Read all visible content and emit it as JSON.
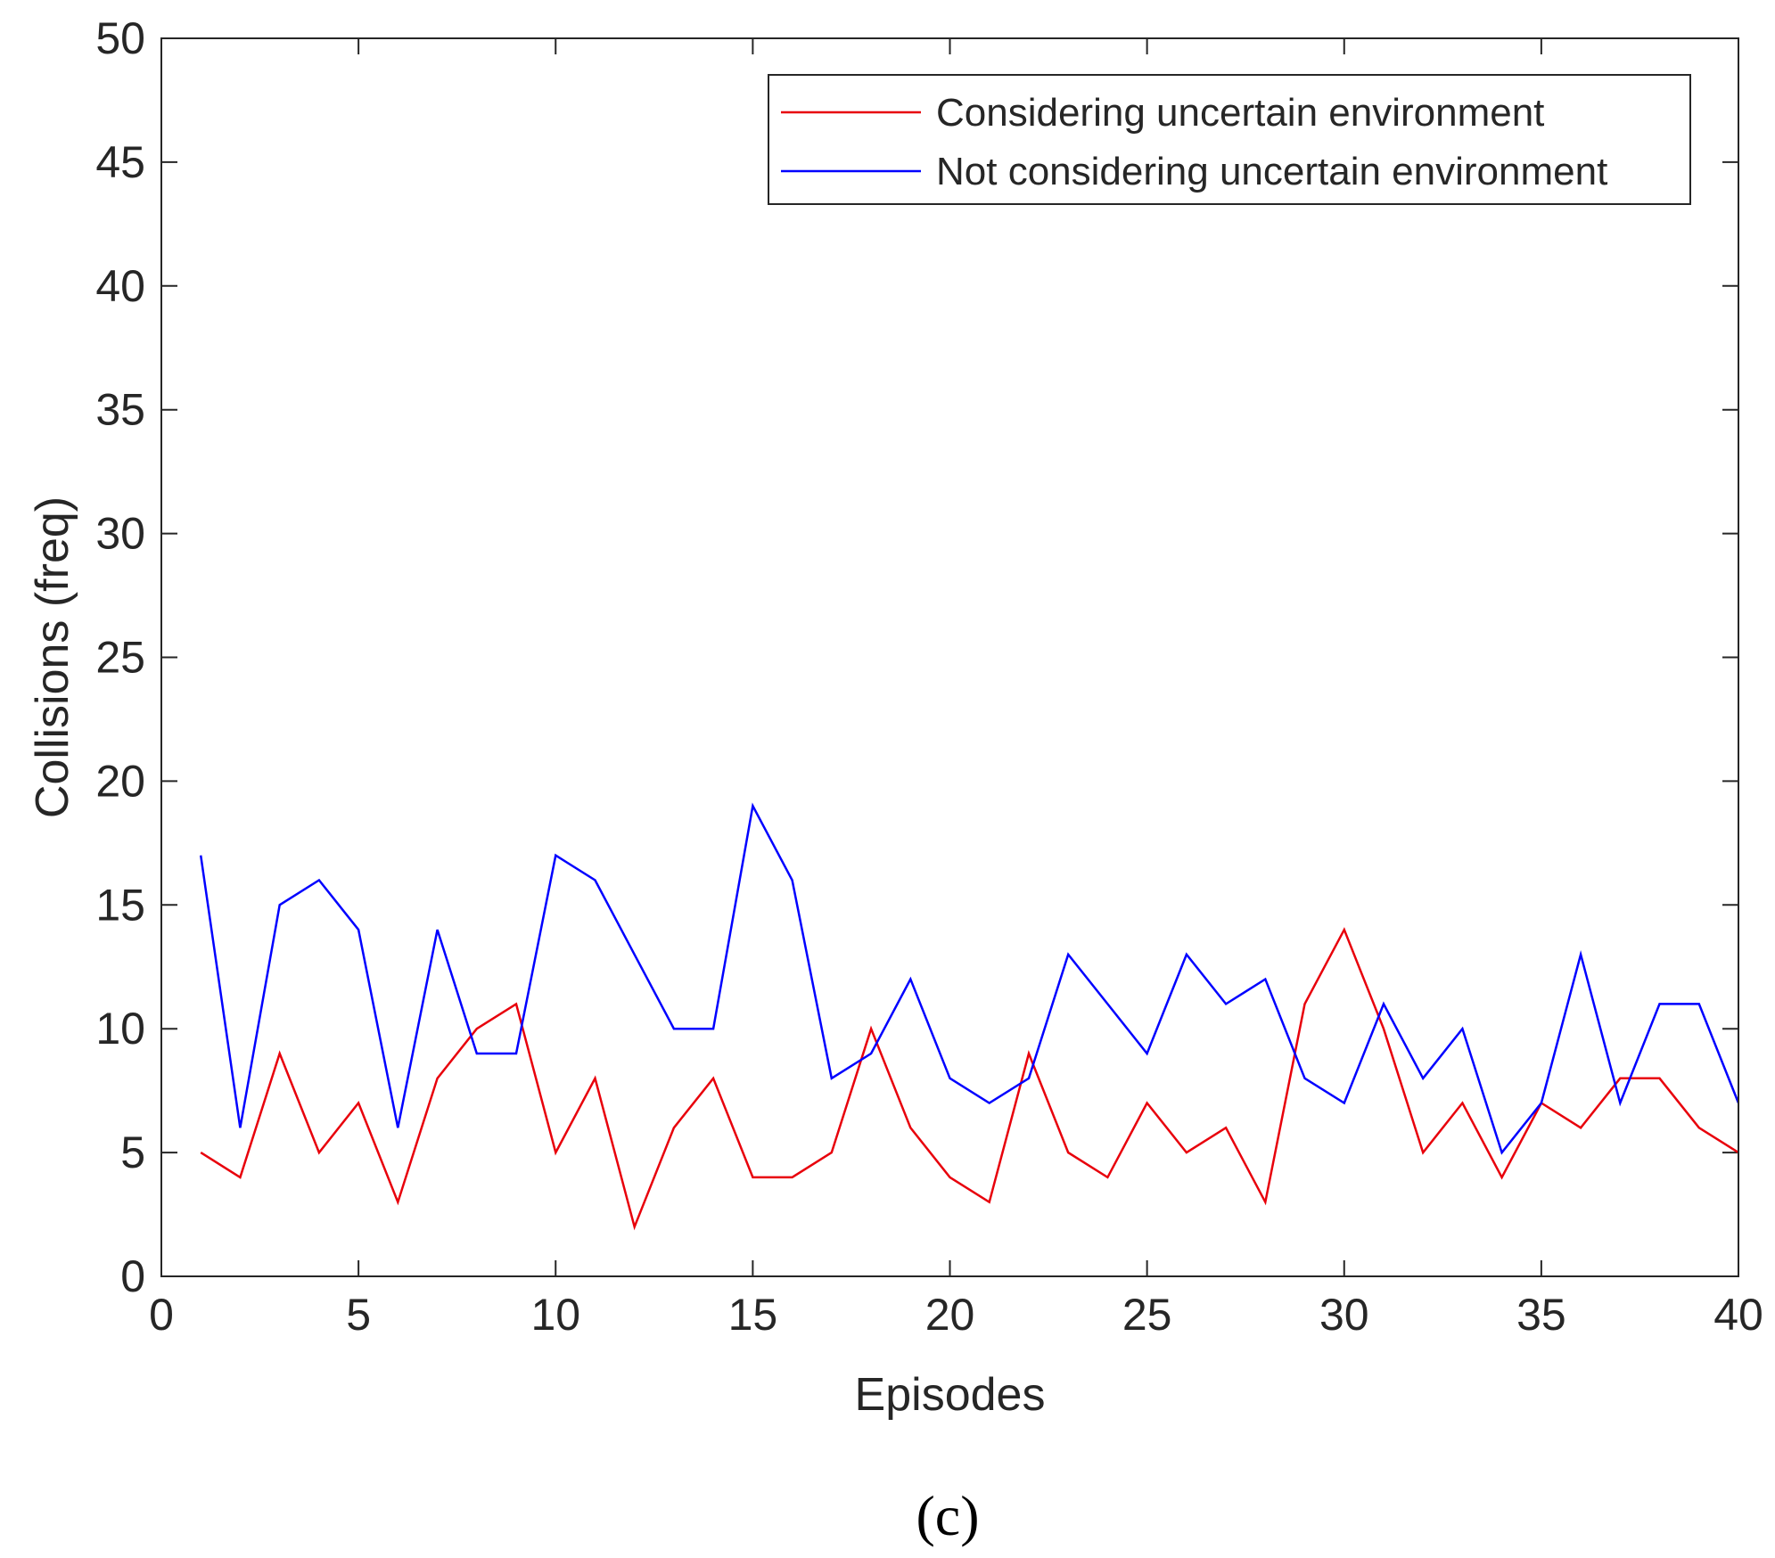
{
  "chart_data": {
    "type": "line",
    "title": "",
    "xlabel": "Episodes",
    "ylabel": "Collisions (freq)",
    "xlim": [
      0,
      40
    ],
    "ylim": [
      0,
      50
    ],
    "xticks": [
      0,
      5,
      10,
      15,
      20,
      25,
      30,
      35,
      40
    ],
    "yticks": [
      0,
      5,
      10,
      15,
      20,
      25,
      30,
      35,
      40,
      45,
      50
    ],
    "grid": false,
    "legend_position": "top-right",
    "x": [
      1,
      2,
      3,
      4,
      5,
      6,
      7,
      8,
      9,
      10,
      11,
      12,
      13,
      14,
      15,
      16,
      17,
      18,
      19,
      20,
      21,
      22,
      23,
      24,
      25,
      26,
      27,
      28,
      29,
      30,
      31,
      32,
      33,
      34,
      35,
      36,
      37,
      38,
      39,
      40
    ],
    "series": [
      {
        "name": "Considering uncertain environment",
        "color": "#e8000b",
        "values": [
          5,
          4,
          9,
          5,
          7,
          3,
          8,
          10,
          11,
          5,
          8,
          2,
          6,
          8,
          4,
          4,
          5,
          10,
          6,
          4,
          3,
          9,
          5,
          4,
          7,
          5,
          6,
          3,
          11,
          14,
          10,
          5,
          7,
          4,
          7,
          6,
          8,
          8,
          6,
          5
        ]
      },
      {
        "name": "Not considering uncertain environment",
        "color": "#0000ff",
        "values": [
          17,
          6,
          15,
          16,
          14,
          6,
          14,
          9,
          9,
          17,
          16,
          13,
          10,
          10,
          19,
          16,
          8,
          9,
          12,
          8,
          7,
          8,
          13,
          11,
          9,
          13,
          11,
          12,
          8,
          7,
          11,
          8,
          10,
          5,
          7,
          13,
          7,
          11,
          11,
          7
        ]
      }
    ],
    "panel_label": "(c)"
  }
}
